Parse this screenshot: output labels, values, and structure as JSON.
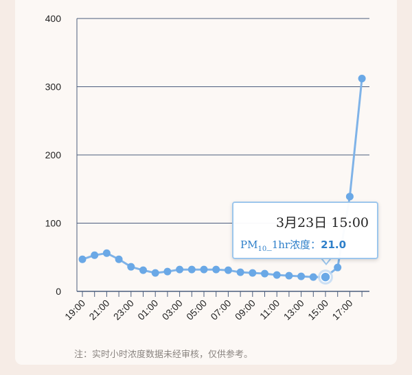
{
  "chart_data": {
    "type": "line",
    "x": [
      "19:00",
      "20:00",
      "21:00",
      "22:00",
      "23:00",
      "00:00",
      "01:00",
      "02:00",
      "03:00",
      "04:00",
      "05:00",
      "06:00",
      "07:00",
      "08:00",
      "09:00",
      "10:00",
      "11:00",
      "12:00",
      "13:00",
      "14:00",
      "15:00",
      "16:00",
      "17:00",
      "18:00"
    ],
    "x_tick_labels": [
      "19:00",
      "21:00",
      "23:00",
      "01:00",
      "03:00",
      "05:00",
      "07:00",
      "09:00",
      "11:00",
      "13:00",
      "15:00",
      "17:00"
    ],
    "series": [
      {
        "values": [
          47,
          53,
          56,
          47,
          36,
          31,
          27,
          29,
          32,
          32,
          32,
          32,
          31,
          28,
          27,
          26,
          24,
          23,
          22,
          21,
          21,
          35,
          139,
          312
        ]
      }
    ],
    "ylim": [
      0,
      400
    ],
    "y_ticks": [
      0,
      100,
      200,
      300,
      400
    ],
    "grid": true,
    "line_color": "#7fb3e8",
    "grid_color": "#4a5c7c",
    "highlight_index": 20
  },
  "tooltip": {
    "date_time": "3月23日  15:00",
    "label_prefix": "PM",
    "label_sub": "10",
    "label_suffix": "_1hr浓度：",
    "value": "21.0"
  },
  "note": "注：实时小时浓度数据未经审核，仅供参考。"
}
